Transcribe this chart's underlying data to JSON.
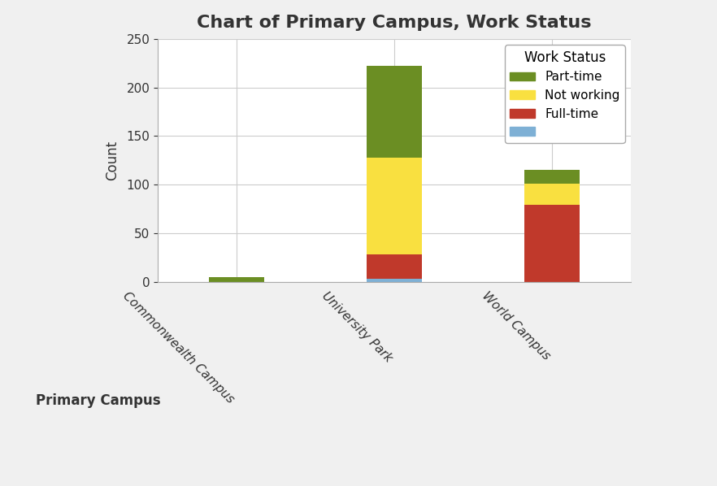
{
  "title": "Chart of Primary Campus, Work Status",
  "xlabel": "Primary Campus",
  "ylabel": "Count",
  "categories": [
    "Commonwealth Campus",
    "University Park",
    "World Campus"
  ],
  "series": [
    {
      "label": "",
      "color": "#7EB0D5",
      "values": [
        0,
        3,
        0
      ]
    },
    {
      "label": "Full-time",
      "color": "#C0392B",
      "values": [
        0,
        25,
        79
      ]
    },
    {
      "label": "Not working",
      "color": "#F9E040",
      "values": [
        0,
        100,
        22
      ]
    },
    {
      "label": "Part-time",
      "color": "#6B8E23",
      "values": [
        5,
        94,
        14
      ]
    }
  ],
  "legend_title": "Work Status",
  "ylim": [
    0,
    250
  ],
  "yticks": [
    0,
    50,
    100,
    150,
    200,
    250
  ],
  "background_color": "#f0f0f0",
  "plot_bg_color": "#ffffff",
  "grid_color": "#cccccc",
  "bar_width": 0.35,
  "title_fontsize": 16,
  "axis_label_fontsize": 12,
  "tick_fontsize": 11,
  "legend_fontsize": 11
}
